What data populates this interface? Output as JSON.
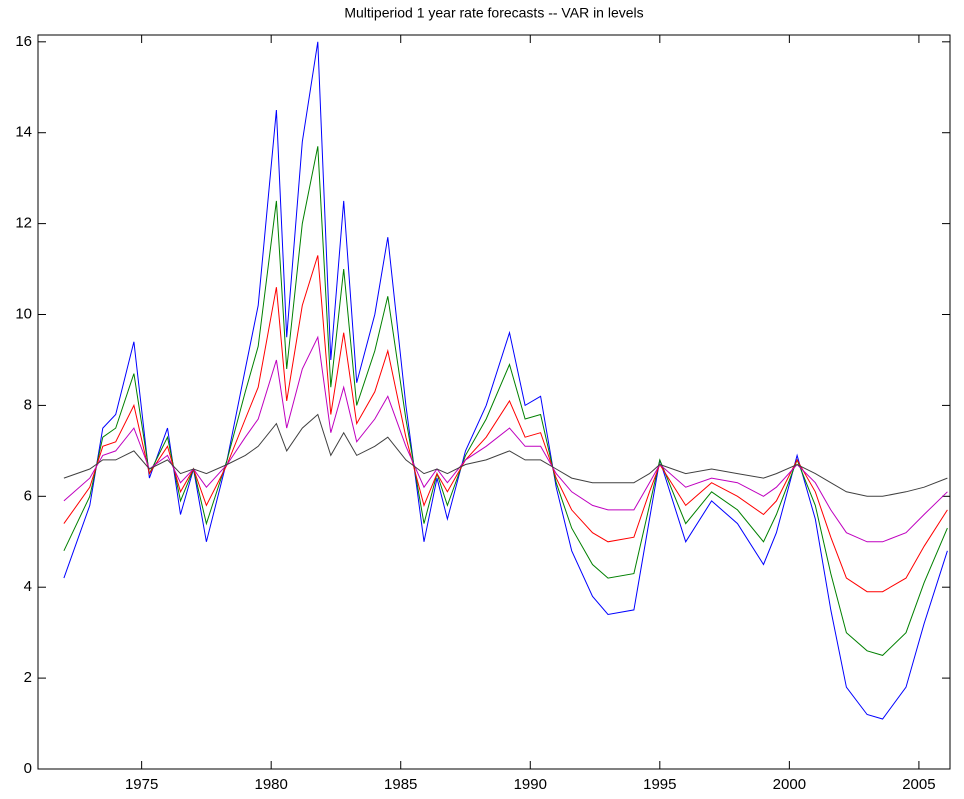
{
  "chart_data": {
    "type": "line",
    "title": "Multiperiod 1 year rate forecasts -- VAR in levels",
    "x": [
      1972,
      1973,
      1973.5,
      1974,
      1974.7,
      1975.3,
      1976,
      1976.5,
      1977,
      1977.5,
      1978.3,
      1979,
      1979.5,
      1980.2,
      1980.6,
      1981.2,
      1981.8,
      1982.3,
      1982.8,
      1983.3,
      1984,
      1984.5,
      1985.2,
      1985.9,
      1986.4,
      1986.8,
      1987.5,
      1988.3,
      1989.2,
      1989.8,
      1990.4,
      1991,
      1991.6,
      1992.4,
      1993,
      1994,
      1994.6,
      1995,
      1996,
      1997,
      1998,
      1999,
      1999.5,
      2000.3,
      2001,
      2001.6,
      2002.2,
      2003,
      2003.6,
      2004.5,
      2005.2,
      2006.1
    ],
    "series": [
      {
        "color": "#0000ff",
        "values": [
          4.2,
          5.8,
          7.5,
          7.8,
          9.4,
          6.4,
          7.5,
          5.6,
          6.6,
          5.0,
          6.8,
          8.8,
          10.2,
          14.5,
          9.5,
          13.8,
          16.0,
          9.0,
          12.5,
          8.5,
          10.0,
          11.7,
          8.0,
          5.0,
          6.4,
          5.5,
          7.0,
          8.0,
          9.6,
          8.0,
          8.2,
          6.2,
          4.8,
          3.8,
          3.4,
          3.5,
          5.5,
          6.8,
          5.0,
          5.9,
          5.4,
          4.5,
          5.2,
          6.9,
          5.5,
          3.5,
          1.8,
          1.2,
          1.1,
          1.8,
          3.2,
          4.8
        ]
      },
      {
        "color": "#008000",
        "values": [
          4.8,
          6.0,
          7.3,
          7.5,
          8.7,
          6.5,
          7.3,
          5.9,
          6.6,
          5.4,
          6.8,
          8.3,
          9.3,
          12.5,
          8.8,
          12.0,
          13.7,
          8.4,
          11.0,
          8.0,
          9.2,
          10.4,
          7.7,
          5.4,
          6.5,
          5.8,
          6.9,
          7.7,
          8.9,
          7.7,
          7.8,
          6.3,
          5.3,
          4.5,
          4.2,
          4.3,
          5.8,
          6.8,
          5.4,
          6.1,
          5.7,
          5.0,
          5.6,
          6.8,
          5.8,
          4.3,
          3.0,
          2.6,
          2.5,
          3.0,
          4.1,
          5.3
        ]
      },
      {
        "color": "#ff0000",
        "values": [
          5.4,
          6.2,
          7.1,
          7.2,
          8.0,
          6.5,
          7.1,
          6.1,
          6.6,
          5.8,
          6.7,
          7.7,
          8.4,
          10.6,
          8.1,
          10.2,
          11.3,
          7.8,
          9.6,
          7.6,
          8.3,
          9.2,
          7.3,
          5.8,
          6.5,
          6.1,
          6.8,
          7.3,
          8.1,
          7.3,
          7.4,
          6.4,
          5.7,
          5.2,
          5.0,
          5.1,
          6.1,
          6.7,
          5.8,
          6.3,
          6.0,
          5.6,
          5.9,
          6.8,
          6.1,
          5.1,
          4.2,
          3.9,
          3.9,
          4.2,
          4.9,
          5.7
        ]
      },
      {
        "color": "#bf00bf",
        "values": [
          5.9,
          6.4,
          6.9,
          7.0,
          7.5,
          6.6,
          6.9,
          6.3,
          6.6,
          6.2,
          6.7,
          7.3,
          7.7,
          9.0,
          7.5,
          8.8,
          9.5,
          7.4,
          8.4,
          7.2,
          7.7,
          8.2,
          7.1,
          6.2,
          6.6,
          6.3,
          6.8,
          7.1,
          7.5,
          7.1,
          7.1,
          6.5,
          6.1,
          5.8,
          5.7,
          5.7,
          6.3,
          6.7,
          6.2,
          6.4,
          6.3,
          6.0,
          6.2,
          6.7,
          6.3,
          5.7,
          5.2,
          5.0,
          5.0,
          5.2,
          5.6,
          6.1
        ]
      },
      {
        "color": "#404040",
        "values": [
          6.4,
          6.6,
          6.8,
          6.8,
          7.0,
          6.6,
          6.8,
          6.5,
          6.6,
          6.5,
          6.7,
          6.9,
          7.1,
          7.6,
          7.0,
          7.5,
          7.8,
          6.9,
          7.4,
          6.9,
          7.1,
          7.3,
          6.8,
          6.5,
          6.6,
          6.5,
          6.7,
          6.8,
          7.0,
          6.8,
          6.8,
          6.6,
          6.4,
          6.3,
          6.3,
          6.3,
          6.5,
          6.7,
          6.5,
          6.6,
          6.5,
          6.4,
          6.5,
          6.7,
          6.5,
          6.3,
          6.1,
          6.0,
          6.0,
          6.1,
          6.2,
          6.4
        ]
      }
    ],
    "xlim": [
      1971,
      2006.2
    ],
    "ylim": [
      0,
      16.15
    ],
    "xticks": [
      1975,
      1980,
      1985,
      1990,
      1995,
      2000,
      2005
    ],
    "yticks": [
      0,
      2,
      4,
      6,
      8,
      10,
      12,
      14,
      16
    ]
  }
}
